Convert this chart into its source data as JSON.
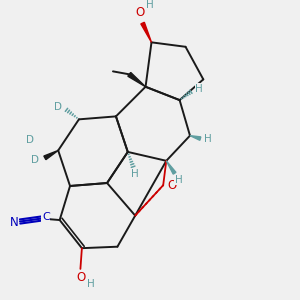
{
  "bg_color": "#f0f0f0",
  "bond_color": "#1a1a1a",
  "teal_color": "#5f9ea0",
  "red_color": "#cc0000",
  "blue_color": "#0000bb",
  "fig_size": [
    3.0,
    3.0
  ],
  "dpi": 100,
  "xlim": [
    0,
    10
  ],
  "ylim": [
    0,
    10
  ]
}
